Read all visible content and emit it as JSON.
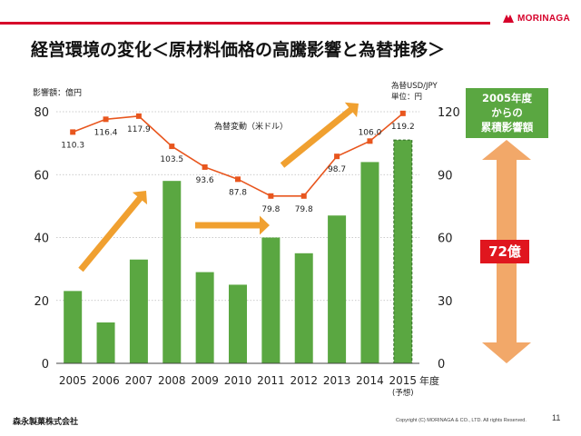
{
  "page": {
    "title": "経営環境の変化＜原材料価格の高騰影響と為替推移＞",
    "logo_text": "MORINAGA",
    "company": "森永製菓株式会社",
    "copyright": "Copyright (C) MORINAGA & CO., LTD. All rights Reserved.",
    "page_number": "11"
  },
  "side": {
    "box_lines": [
      "2005年度",
      "からの",
      "累積影響額"
    ],
    "amount": "72億"
  },
  "chart_data": {
    "type": "bar+line",
    "left_axis_label": "影響額：億円",
    "right_axis_label_lines": [
      "為替USD/JPY",
      "単位：円"
    ],
    "xunit": "年度",
    "categories": [
      "2005",
      "2006",
      "2007",
      "2008",
      "2009",
      "2010",
      "2011",
      "2012",
      "2013",
      "2014",
      "2015"
    ],
    "category_sublabels": [
      "",
      "",
      "",
      "",
      "",
      "",
      "",
      "",
      "",
      "",
      "(予想)"
    ],
    "bar_series": {
      "name": "影響額",
      "values": [
        23,
        13,
        33,
        58,
        29,
        25,
        40,
        35,
        47,
        64,
        71
      ],
      "color": "#5aa741",
      "forecast_index": 10
    },
    "line_series": {
      "name": "為替変動（米ドル）",
      "values": [
        110.3,
        116.4,
        117.9,
        103.5,
        93.6,
        87.8,
        79.8,
        79.8,
        98.7,
        106.0,
        119.2
      ],
      "labels": [
        "110.3",
        "116.4",
        "117.9",
        "103.5",
        "93.6",
        "87.8",
        "79.8",
        "79.8",
        "98.7",
        "106.0",
        "119.2"
      ],
      "color": "#e8561e"
    },
    "left_ticks": [
      0,
      20,
      40,
      60,
      80
    ],
    "right_ticks": [
      0,
      30,
      60,
      90,
      120
    ],
    "ylim_left": [
      0,
      80
    ],
    "ylim_right": [
      0,
      120
    ],
    "arrow_color": "#f0a030"
  }
}
